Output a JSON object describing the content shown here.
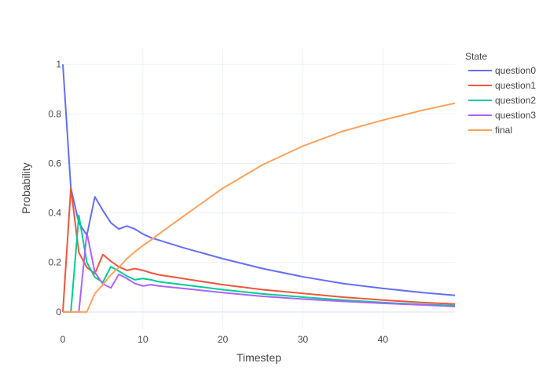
{
  "chart_data": {
    "type": "line",
    "title": "",
    "xlabel": "Timestep",
    "ylabel": "Probability",
    "xlim": [
      0,
      49
    ],
    "ylim": [
      -0.07,
      1.07
    ],
    "x_ticks": [
      0,
      10,
      20,
      30,
      40
    ],
    "y_ticks": [
      0,
      0.2,
      0.4,
      0.6,
      0.8,
      1
    ],
    "grid": true,
    "legend": {
      "title": "State",
      "placement": "top-right"
    },
    "series": [
      {
        "name": "question0",
        "color": "#636efa",
        "points": [
          [
            0,
            1
          ],
          [
            1,
            0.5
          ],
          [
            2,
            0.36
          ],
          [
            3,
            0.31
          ],
          [
            4,
            0.465
          ],
          [
            5,
            0.41
          ],
          [
            6,
            0.36
          ],
          [
            7,
            0.335
          ],
          [
            8,
            0.347
          ],
          [
            9,
            0.335
          ],
          [
            10,
            0.315
          ],
          [
            11,
            0.3
          ],
          [
            12,
            0.29
          ],
          [
            15,
            0.26
          ],
          [
            20,
            0.215
          ],
          [
            25,
            0.175
          ],
          [
            30,
            0.142
          ],
          [
            35,
            0.115
          ],
          [
            40,
            0.095
          ],
          [
            45,
            0.078
          ],
          [
            49,
            0.067
          ]
        ]
      },
      {
        "name": "question1",
        "color": "#ef553b",
        "points": [
          [
            0,
            0
          ],
          [
            1,
            0.5
          ],
          [
            2,
            0.24
          ],
          [
            3,
            0.18
          ],
          [
            4,
            0.155
          ],
          [
            5,
            0.232
          ],
          [
            6,
            0.205
          ],
          [
            7,
            0.182
          ],
          [
            8,
            0.168
          ],
          [
            9,
            0.175
          ],
          [
            10,
            0.168
          ],
          [
            11,
            0.158
          ],
          [
            12,
            0.15
          ],
          [
            15,
            0.135
          ],
          [
            20,
            0.11
          ],
          [
            25,
            0.09
          ],
          [
            30,
            0.075
          ],
          [
            35,
            0.06
          ],
          [
            40,
            0.048
          ],
          [
            45,
            0.038
          ],
          [
            49,
            0.032
          ]
        ]
      },
      {
        "name": "question2",
        "color": "#00cc96",
        "points": [
          [
            0,
            0
          ],
          [
            1,
            0
          ],
          [
            2,
            0.39
          ],
          [
            3,
            0.2
          ],
          [
            4,
            0.14
          ],
          [
            5,
            0.12
          ],
          [
            6,
            0.183
          ],
          [
            7,
            0.165
          ],
          [
            8,
            0.145
          ],
          [
            9,
            0.13
          ],
          [
            10,
            0.135
          ],
          [
            11,
            0.13
          ],
          [
            12,
            0.122
          ],
          [
            15,
            0.11
          ],
          [
            20,
            0.09
          ],
          [
            25,
            0.073
          ],
          [
            30,
            0.06
          ],
          [
            35,
            0.048
          ],
          [
            40,
            0.038
          ],
          [
            45,
            0.03
          ],
          [
            49,
            0.026
          ]
        ]
      },
      {
        "name": "question3",
        "color": "#ab63fa",
        "points": [
          [
            0,
            0
          ],
          [
            1,
            0
          ],
          [
            2,
            0
          ],
          [
            3,
            0.32
          ],
          [
            4,
            0.16
          ],
          [
            5,
            0.113
          ],
          [
            6,
            0.097
          ],
          [
            7,
            0.152
          ],
          [
            8,
            0.135
          ],
          [
            9,
            0.115
          ],
          [
            10,
            0.105
          ],
          [
            11,
            0.11
          ],
          [
            12,
            0.105
          ],
          [
            15,
            0.095
          ],
          [
            20,
            0.078
          ],
          [
            25,
            0.063
          ],
          [
            30,
            0.052
          ],
          [
            35,
            0.043
          ],
          [
            40,
            0.035
          ],
          [
            45,
            0.028
          ],
          [
            49,
            0.022
          ]
        ]
      },
      {
        "name": "final",
        "color": "#ffa15a",
        "points": [
          [
            0,
            0
          ],
          [
            1,
            0
          ],
          [
            2,
            0
          ],
          [
            3,
            0
          ],
          [
            4,
            0.075
          ],
          [
            5,
            0.11
          ],
          [
            6,
            0.15
          ],
          [
            7,
            0.18
          ],
          [
            8,
            0.215
          ],
          [
            9,
            0.243
          ],
          [
            10,
            0.268
          ],
          [
            11,
            0.29
          ],
          [
            12,
            0.315
          ],
          [
            15,
            0.385
          ],
          [
            20,
            0.5
          ],
          [
            25,
            0.595
          ],
          [
            30,
            0.67
          ],
          [
            35,
            0.73
          ],
          [
            40,
            0.775
          ],
          [
            45,
            0.815
          ],
          [
            49,
            0.843
          ]
        ]
      }
    ]
  }
}
